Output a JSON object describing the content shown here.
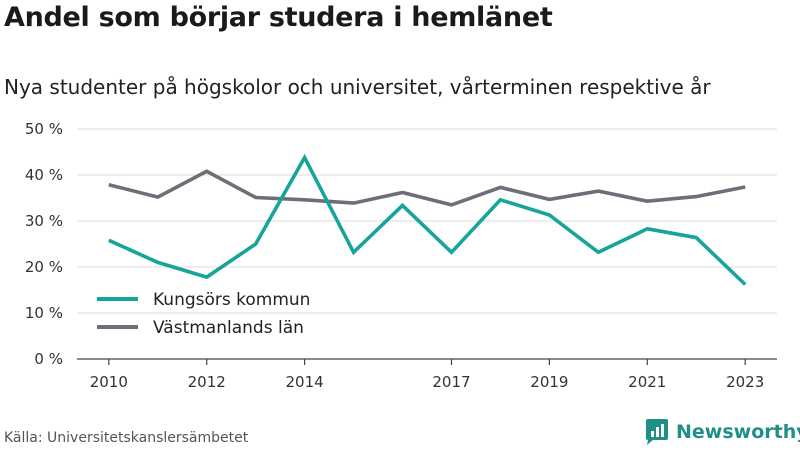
{
  "title": "Andel som börjar studera i hemlänet",
  "subtitle": "Nya studenter på högskolor och universitet, vårterminen respektive år",
  "source": "Källa: Universitetskanslersämbetet",
  "brand": "Newsworthy",
  "colors": {
    "kungsor": "#17a59b",
    "vastmanland": "#6e6e78",
    "brand": "#1f8f87"
  },
  "chart_data": {
    "type": "line",
    "title": "Andel som börjar studera i hemlänet",
    "subtitle": "Nya studenter på högskolor och universitet, vårterminen respektive år",
    "x": [
      2010,
      2011,
      2012,
      2013,
      2014,
      2015,
      2016,
      2017,
      2018,
      2019,
      2020,
      2021,
      2022,
      2023
    ],
    "x_ticks": [
      2010,
      2012,
      2014,
      2017,
      2019,
      2021,
      2023
    ],
    "y_ticks": [
      0,
      10,
      20,
      30,
      40,
      50
    ],
    "y_tick_labels": [
      "0 %",
      "10 %",
      "20 %",
      "30 %",
      "40 %",
      "50 %"
    ],
    "ylim": [
      0,
      50
    ],
    "grid": true,
    "legend": "bottom-left",
    "series": [
      {
        "name": "Kungsörs kommun",
        "values": [
          25.8,
          21.0,
          17.8,
          25.0,
          43.8,
          23.2,
          33.4,
          23.2,
          34.6,
          31.3,
          23.2,
          28.3,
          26.4,
          16.2
        ]
      },
      {
        "name": "Västmanlands län",
        "values": [
          37.9,
          35.2,
          40.8,
          35.1,
          34.6,
          33.9,
          36.2,
          33.5,
          37.3,
          34.7,
          36.5,
          34.3,
          35.3,
          37.4
        ]
      }
    ]
  }
}
